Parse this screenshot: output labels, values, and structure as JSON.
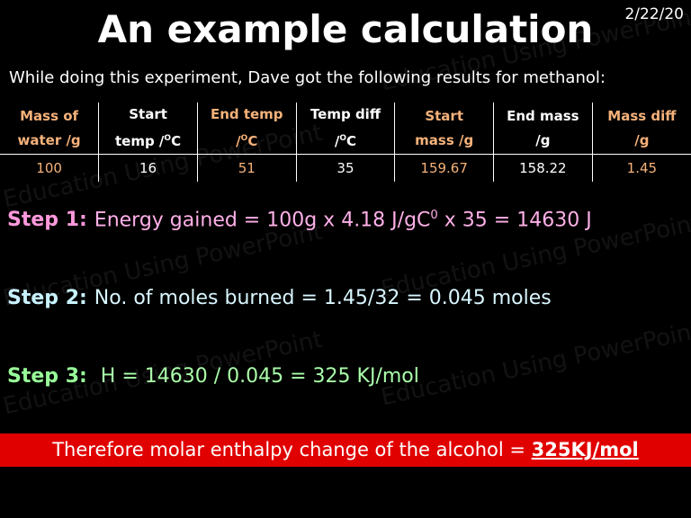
{
  "date": "2/22/20",
  "title": "An example calculation",
  "intro": "While doing this experiment, Dave got the following results for methanol:",
  "watermark": "Education Using PowerPoint",
  "table": {
    "columns": [
      {
        "line1": "Mass of",
        "line2": "water /g",
        "color": "#f6b27a"
      },
      {
        "line1": "Start",
        "line2": "temp /",
        "sup": "O",
        "line2_end": "C",
        "color": "#ffffff"
      },
      {
        "line1": "End temp",
        "line2": "/",
        "sup": "O",
        "line2_end": "C",
        "color": "#f6b27a"
      },
      {
        "line1": "Temp diff",
        "line2": "/",
        "sup": "O",
        "line2_end": "C",
        "color": "#ffffff"
      },
      {
        "line1": "Start",
        "line2": "mass /g",
        "color": "#f6b27a"
      },
      {
        "line1": "End mass",
        "line2": "/g",
        "color": "#ffffff"
      },
      {
        "line1": "Mass diff",
        "line2": "/g",
        "color": "#f6b27a"
      }
    ],
    "rows": [
      [
        100,
        16,
        51,
        35,
        159.67,
        158.22,
        1.45
      ]
    ]
  },
  "steps": [
    {
      "label": "Step 1:",
      "text": "Energy gained = 100g x 4.18 J/gC",
      "sup": "0",
      "text_end": " x 35 = 14630 J",
      "label_color": "#ff99dd",
      "color": "#ffb0e8"
    },
    {
      "label": "Step 2:",
      "text": "No. of moles burned = 1.45/32 = 0.045 moles",
      "label_color": "#c8f2ff",
      "color": "#d8f6ff"
    },
    {
      "label": "Step 3:",
      "text": " H = 14630 / 0.045 = 325 KJ/mol",
      "label_color": "#99ff99",
      "color": "#aaffaa"
    }
  ],
  "conclusion": {
    "text": "Therefore molar enthalpy change of the alcohol = ",
    "answer": "325KJ/mol"
  }
}
